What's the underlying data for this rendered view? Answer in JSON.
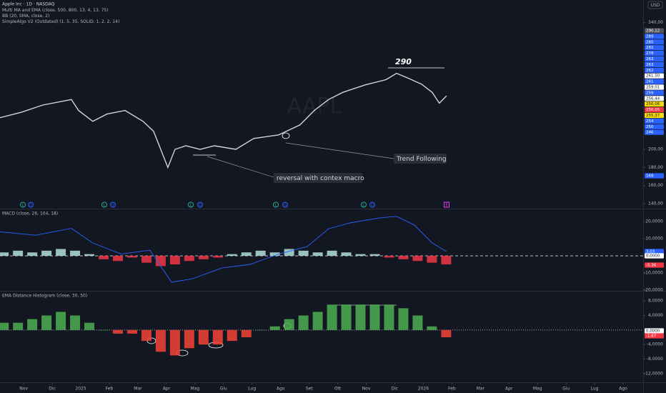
{
  "chart_data": [
    {
      "type": "line",
      "title": "Apple Inc · 1D · NASDAQ",
      "indicators": [
        "Multi MA and EMA (close, 500, 800, 13, 4, 13, 75)",
        "BB (20, SMA, close, 2)",
        "SimpleAlgo V2 (Outdated) (1, 5, 35, SOLID, 1, 2, 2, 14)"
      ],
      "currency": "USD",
      "watermark": "AAPL",
      "annotations": [
        "290",
        "Trend Following",
        "reversal with contex macro"
      ],
      "event_markers": [
        "L",
        "G",
        "L",
        "G",
        "L",
        "G",
        "L",
        "G",
        "L",
        "G",
        "E"
      ],
      "x": [
        0.17,
        0.92,
        1.67,
        2.67,
        2.92,
        3.42,
        3.92,
        4.55,
        5.18,
        5.55,
        6.05,
        6.3,
        6.68,
        7.18,
        7.68,
        8.43,
        9.06,
        9.93,
        10.68,
        11.18,
        11.68,
        12.18,
        12.94,
        13.69,
        14.06,
        14.44,
        14.94,
        15.31,
        15.56,
        15.81
      ],
      "series": [
        {
          "color": "#d1d4dc",
          "values": [
            235,
            241,
            249,
            255,
            243,
            231,
            239,
            243,
            231,
            220,
            180,
            200,
            204,
            200,
            204,
            200,
            212,
            216,
            227,
            243,
            255,
            263,
            271,
            277,
            284,
            279,
            272,
            263,
            251,
            259
          ]
        }
      ],
      "xlim": [
        0.17,
        22.7
      ],
      "ylim": [
        134.5,
        365
      ],
      "yticks": [
        {
          "value": 340,
          "label": "340,00"
        },
        {
          "value": 200,
          "label": "200,00"
        },
        {
          "value": 180,
          "label": "180,00"
        },
        {
          "value": 160,
          "label": "160,00"
        },
        {
          "value": 140,
          "label": "140,00"
        }
      ],
      "price_tags": [
        {
          "label": "290,12",
          "color": "#50535e"
        },
        {
          "label": "289",
          "color": "#2962ff"
        },
        {
          "label": "285",
          "color": "#2962ff"
        },
        {
          "label": "282",
          "color": "#2962ff"
        },
        {
          "label": "278",
          "color": "#2962ff"
        },
        {
          "label": "263",
          "color": "#2962ff"
        },
        {
          "label": "263",
          "color": "#2962ff"
        },
        {
          "label": "262",
          "color": "#2962ff"
        },
        {
          "label": "261,50",
          "color": "#ffffff"
        },
        {
          "label": "261",
          "color": "#2962ff"
        },
        {
          "label": "259,01",
          "color": "#ffffff"
        },
        {
          "label": "259",
          "color": "#2962ff"
        },
        {
          "label": "256,44",
          "color": "#ffffff"
        },
        {
          "label": "256,06",
          "color": "#f5d90a"
        },
        {
          "label": "256,05",
          "color": "#f23645"
        },
        {
          "label": "255,37",
          "color": "#f5d90a"
        },
        {
          "label": "254",
          "color": "#2962ff"
        },
        {
          "label": "250",
          "color": "#2962ff"
        },
        {
          "label": "246",
          "color": "#2962ff"
        },
        {
          "label": "169",
          "color": "#2962ff"
        }
      ]
    },
    {
      "type": "bar_line",
      "title": "MACD (close, 26, 104, 18)",
      "x": [
        0.17,
        1.42,
        2.67,
        3.42,
        4.42,
        5.42,
        6.18,
        6.93,
        7.93,
        8.93,
        9.93,
        10.93,
        11.68,
        12.43,
        13.43,
        14.06,
        14.68,
        15.31,
        15.81
      ],
      "series": [
        {
          "color": "#2962ff",
          "values": [
            14,
            12,
            16,
            7.5,
            1,
            3.3,
            -15.4,
            -13.3,
            -7.1,
            -5,
            1,
            5.4,
            15.8,
            19.2,
            22,
            23,
            18,
            7.5,
            2.5
          ]
        }
      ],
      "bars": {
        "up_color": "#b2dfdb",
        "down_color": "#f23645",
        "x": [
          0.3,
          0.8,
          1.3,
          1.8,
          2.3,
          2.8,
          3.3,
          3.8,
          4.3,
          4.8,
          5.3,
          5.8,
          6.3,
          6.8,
          7.3,
          7.8,
          8.3,
          8.8,
          9.3,
          9.8,
          10.3,
          10.8,
          11.3,
          11.8,
          12.3,
          12.8,
          13.3,
          13.8,
          14.3,
          14.8,
          15.3,
          15.8
        ],
        "values": [
          2,
          3,
          2,
          3,
          4,
          3,
          1,
          -2,
          -3,
          -1,
          -4,
          -6,
          -5,
          -3,
          -2,
          -1,
          1,
          2,
          3,
          2,
          4,
          3,
          2,
          3,
          2,
          1,
          1,
          -1,
          -2,
          -3,
          -4,
          -5
        ]
      },
      "xlim": [
        0.17,
        22.7
      ],
      "ylim": [
        -20.4,
        27.1
      ],
      "yticks": [
        {
          "value": 20,
          "label": "20,0000"
        },
        {
          "value": 10,
          "label": "10,0000"
        },
        {
          "value": -10,
          "label": "-10,0000"
        },
        {
          "value": -20,
          "label": "-20,0000"
        }
      ],
      "price_tags": [
        {
          "label": "3,03",
          "color": "#2962ff"
        },
        {
          "label": "0,0000",
          "color": "#ffffff"
        },
        {
          "label": "-5,36",
          "color": "#f23645"
        }
      ]
    },
    {
      "type": "bar_line",
      "title": "EMA Distance Histogram (close, 30, 50)",
      "bars": {
        "up_color": "#4caf50",
        "down_color": "#f44336",
        "x": [
          0.3,
          0.8,
          1.3,
          1.8,
          2.3,
          2.8,
          3.3,
          3.8,
          4.3,
          4.8,
          5.3,
          5.8,
          6.3,
          6.8,
          7.3,
          7.8,
          8.3,
          8.8,
          9.3,
          9.8,
          10.3,
          10.8,
          11.3,
          11.8,
          12.3,
          12.8,
          13.3,
          13.8,
          14.3,
          14.8,
          15.3,
          15.8
        ],
        "values": [
          2,
          2,
          3,
          4,
          5,
          4,
          2,
          0,
          -1,
          -1,
          -3,
          -6,
          -7,
          -5,
          -4,
          -4,
          -3,
          -2,
          0,
          1,
          3,
          4,
          5,
          7,
          7,
          7,
          7,
          7,
          6,
          4,
          1,
          -2
        ]
      },
      "xlim": [
        0.17,
        22.7
      ],
      "ylim": [
        -14.4,
        10.6
      ],
      "yticks": [
        {
          "value": 8,
          "label": "8,0000"
        },
        {
          "value": 4,
          "label": "4,0000"
        },
        {
          "value": -4,
          "label": "-4,0000"
        },
        {
          "value": -8,
          "label": "-8,0000"
        },
        {
          "value": -12,
          "label": "-12,0000"
        }
      ],
      "price_tags": [
        {
          "label": "0,0000",
          "color": "#ffffff"
        },
        {
          "label": "-1,67",
          "color": "#f23645"
        }
      ],
      "xticks": [
        {
          "value": 1,
          "label": "Nov"
        },
        {
          "value": 2,
          "label": "Dic"
        },
        {
          "value": 3,
          "label": "2025"
        },
        {
          "value": 4,
          "label": "Feb"
        },
        {
          "value": 5,
          "label": "Mar"
        },
        {
          "value": 6,
          "label": "Apr"
        },
        {
          "value": 7,
          "label": "Mag"
        },
        {
          "value": 8,
          "label": "Giu"
        },
        {
          "value": 9,
          "label": "Lug"
        },
        {
          "value": 10,
          "label": "Ago"
        },
        {
          "value": 11,
          "label": "Set"
        },
        {
          "value": 12,
          "label": "Ott"
        },
        {
          "value": 13,
          "label": "Nov"
        },
        {
          "value": 14,
          "label": "Dic"
        },
        {
          "value": 15,
          "label": "2026"
        },
        {
          "value": 16,
          "label": "Feb"
        },
        {
          "value": 17,
          "label": "Mar"
        },
        {
          "value": 18,
          "label": "Apr"
        },
        {
          "value": 19,
          "label": "Mag"
        },
        {
          "value": 20,
          "label": "Giu"
        },
        {
          "value": 21,
          "label": "Lug"
        },
        {
          "value": 22,
          "label": "Ago"
        }
      ]
    }
  ]
}
